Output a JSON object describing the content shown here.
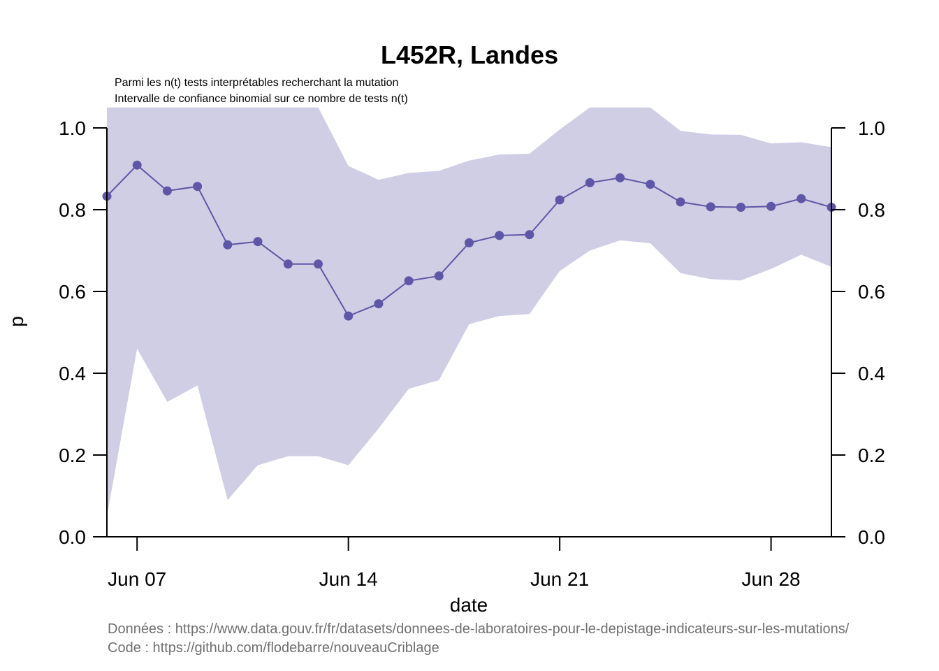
{
  "title": "L452R, Landes",
  "subtitle_lines": [
    "Parmi les n(t) tests interprétables recherchant la mutation",
    "Intervalle de confiance binomial sur ce nombre de tests n(t)"
  ],
  "xlabel": "date",
  "ylabel": "p",
  "captions": [
    "Données : https://www.data.gouv.fr/fr/datasets/donnees-de-laboratoires-pour-le-depistage-indicateurs-sur-les-mutations/",
    "Code : https://github.com/flodebarre/nouveauCriblage"
  ],
  "colors": {
    "line": "#5e56a6",
    "band": "#d0cee5"
  },
  "chart_data": {
    "type": "line",
    "x_tick_labels": [
      "Jun 07",
      "Jun 14",
      "Jun 21",
      "Jun 28"
    ],
    "x_tick_values": [
      "2021-06-07",
      "2021-06-14",
      "2021-06-21",
      "2021-06-28"
    ],
    "y_ticks": [
      "0.0",
      "0.2",
      "0.4",
      "0.6",
      "0.8",
      "1.0"
    ],
    "ylim": [
      0,
      1
    ],
    "xlim": [
      "2021-06-06",
      "2021-06-30"
    ],
    "secondary_y_axis": true,
    "x": [
      "2021-06-06",
      "2021-06-07",
      "2021-06-08",
      "2021-06-09",
      "2021-06-10",
      "2021-06-11",
      "2021-06-12",
      "2021-06-13",
      "2021-06-14",
      "2021-06-15",
      "2021-06-16",
      "2021-06-17",
      "2021-06-18",
      "2021-06-19",
      "2021-06-20",
      "2021-06-21",
      "2021-06-22",
      "2021-06-23",
      "2021-06-24",
      "2021-06-25",
      "2021-06-26",
      "2021-06-27",
      "2021-06-28",
      "2021-06-29",
      "2021-06-30"
    ],
    "series": [
      {
        "values": [
          0.833,
          0.909,
          0.846,
          0.857,
          0.714,
          0.722,
          0.667,
          0.667,
          0.54,
          0.57,
          0.626,
          0.638,
          0.719,
          0.737,
          0.739,
          0.824,
          0.866,
          0.878,
          0.862,
          0.819,
          0.807,
          0.806,
          0.808,
          0.827,
          0.806
        ],
        "lower": [
          0.05,
          0.46,
          0.33,
          0.37,
          0.09,
          0.175,
          0.197,
          0.197,
          0.175,
          0.265,
          0.362,
          0.383,
          0.52,
          0.54,
          0.545,
          0.65,
          0.7,
          0.725,
          0.718,
          0.645,
          0.63,
          0.627,
          0.655,
          0.69,
          0.66
        ],
        "upper": [
          1.0,
          1.0,
          1.0,
          1.0,
          1.0,
          1.0,
          1.0,
          1.0,
          0.907,
          0.873,
          0.89,
          0.895,
          0.92,
          0.935,
          0.937,
          0.996,
          1.0,
          1.0,
          1.0,
          0.993,
          0.984,
          0.983,
          0.962,
          0.965,
          0.953
        ]
      }
    ]
  }
}
